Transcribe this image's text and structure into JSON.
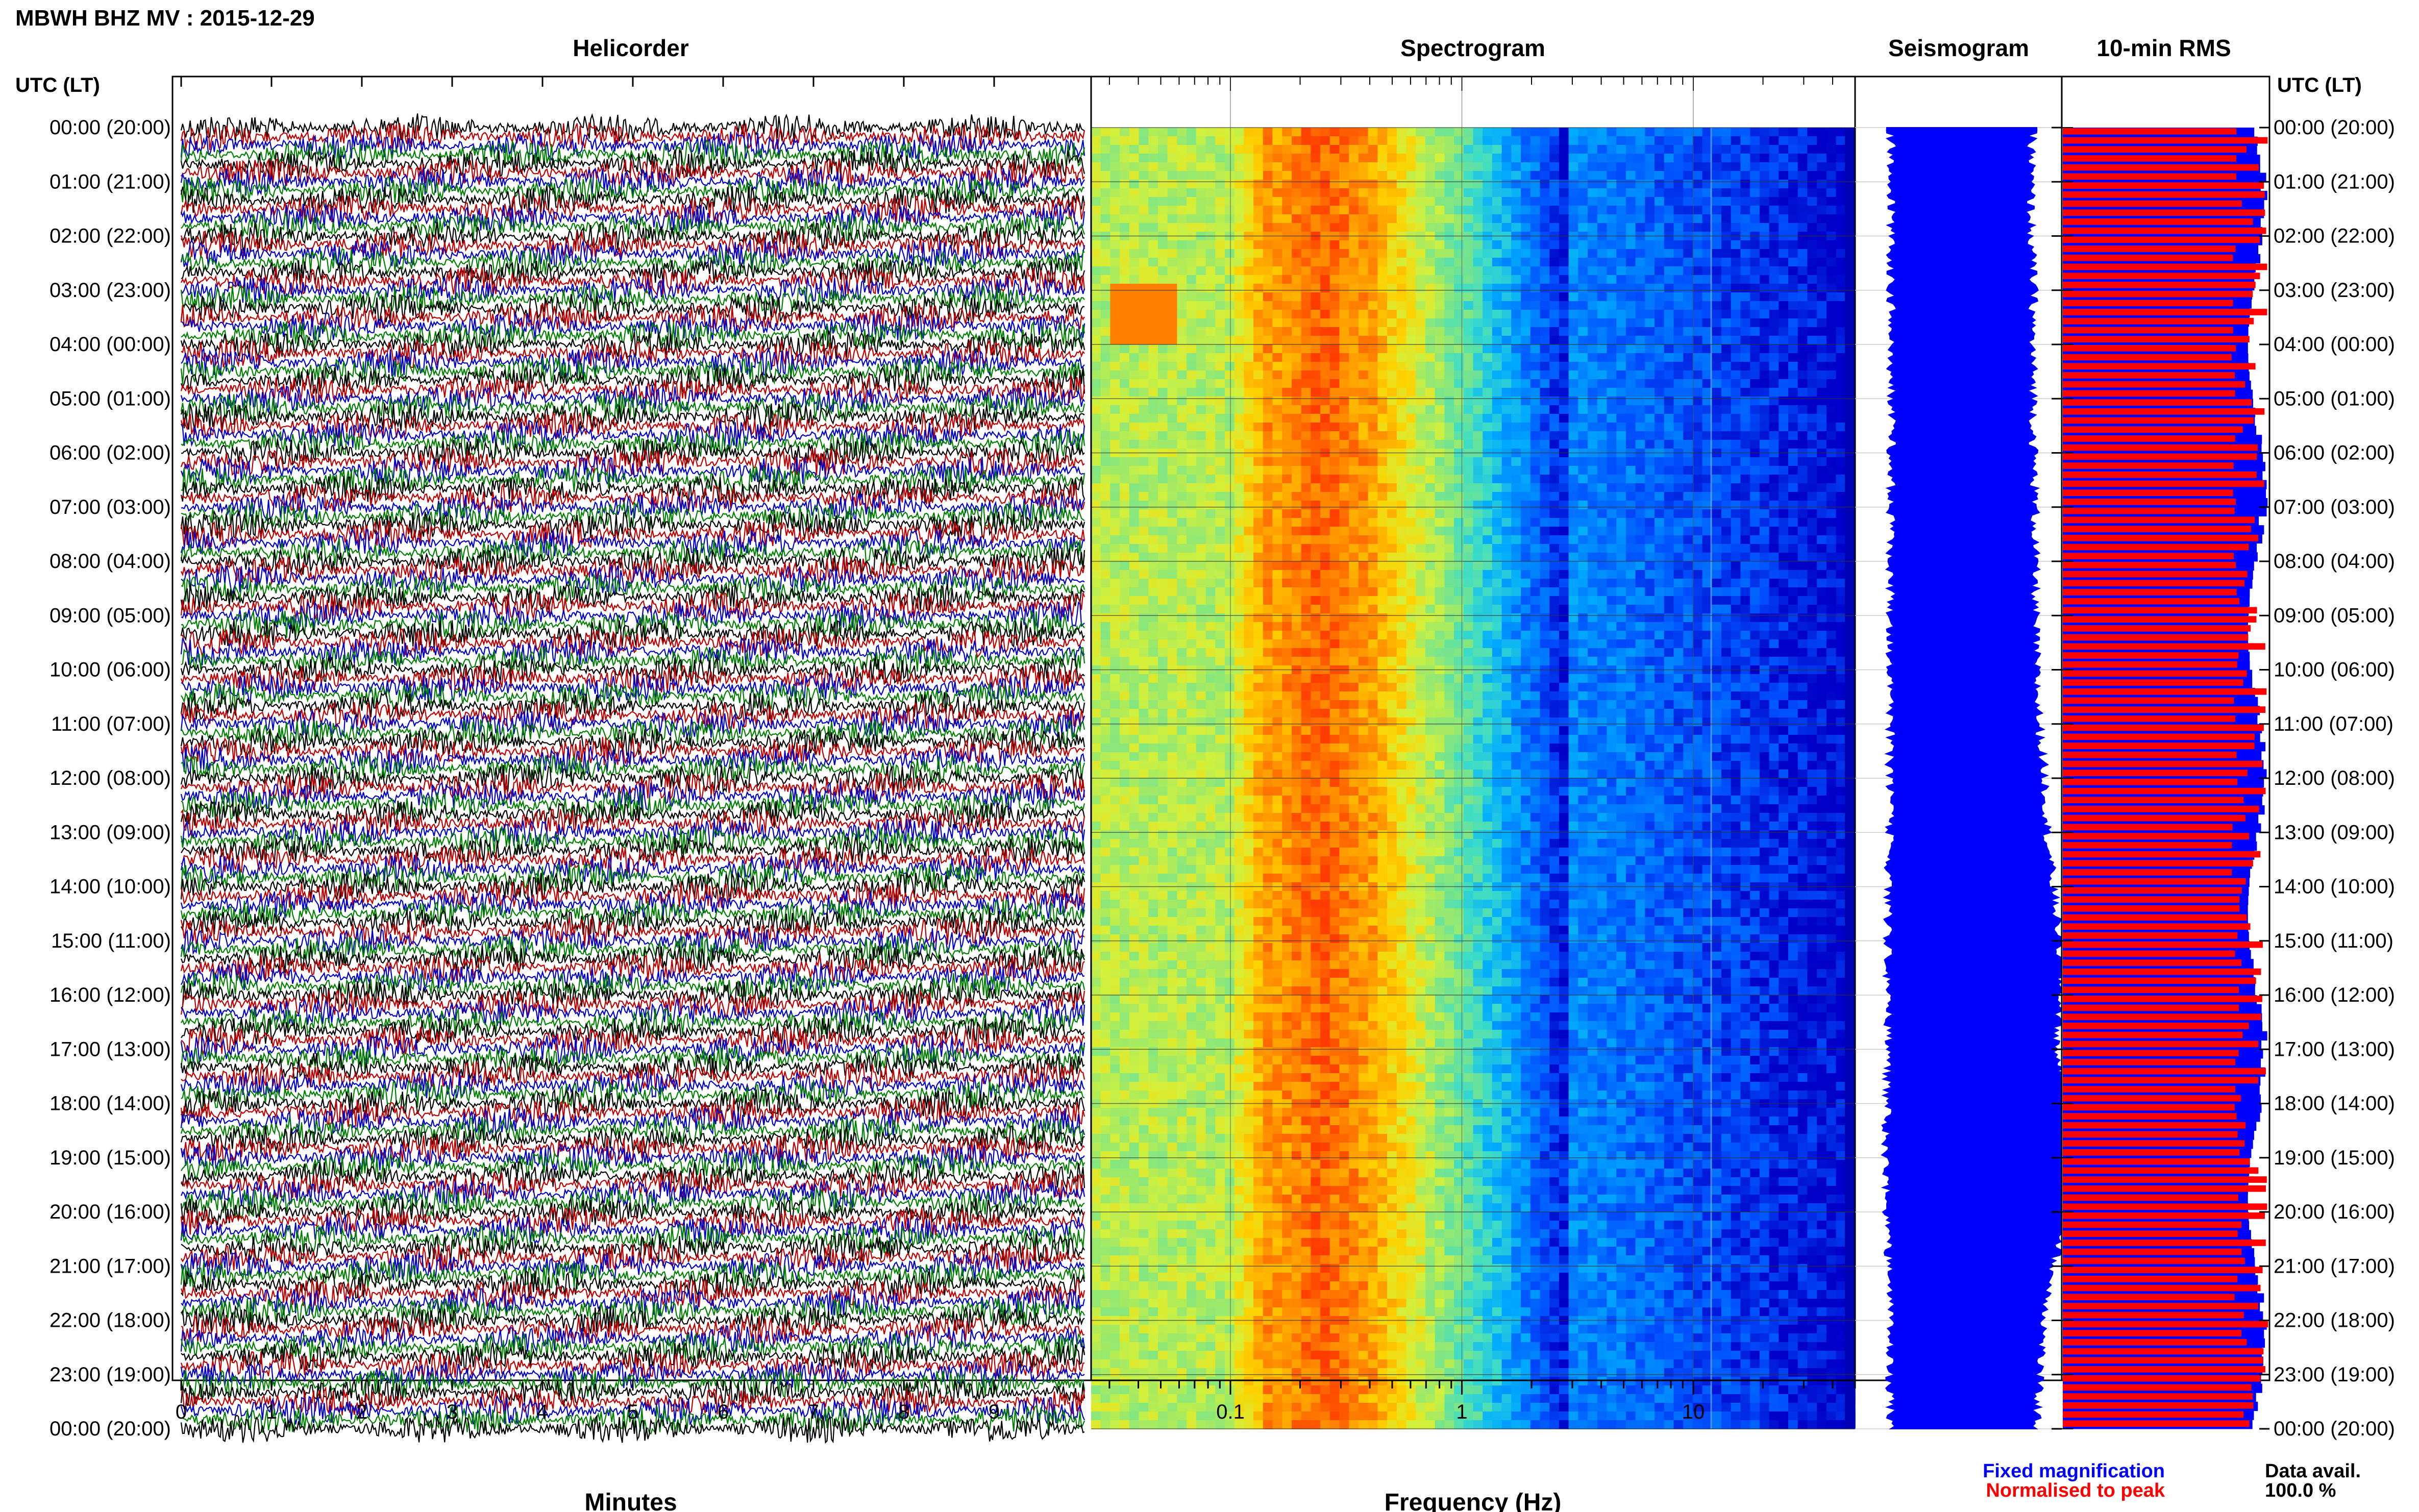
{
  "page_title": "MBWH BHZ MV : 2015-12-29",
  "left_axis_label": "UTC (LT)",
  "right_axis_label": "UTC (LT)",
  "time_labels": [
    "00:00 (20:00)",
    "01:00 (21:00)",
    "02:00 (22:00)",
    "03:00 (23:00)",
    "04:00 (00:00)",
    "05:00 (01:00)",
    "06:00 (02:00)",
    "07:00 (03:00)",
    "08:00 (04:00)",
    "09:00 (05:00)",
    "10:00 (06:00)",
    "11:00 (07:00)",
    "12:00 (08:00)",
    "13:00 (09:00)",
    "14:00 (10:00)",
    "15:00 (11:00)",
    "16:00 (12:00)",
    "17:00 (13:00)",
    "18:00 (14:00)",
    "19:00 (15:00)",
    "20:00 (16:00)",
    "21:00 (17:00)",
    "22:00 (18:00)",
    "23:00 (19:00)",
    "00:00 (20:00)"
  ],
  "panels": {
    "helicorder": {
      "title": "Helicorder",
      "xlabel": "Minutes",
      "xticks": [
        "0",
        "1",
        "2",
        "3",
        "4",
        "5",
        "6",
        "7",
        "8",
        "9"
      ],
      "xlim": [
        0,
        10
      ],
      "trace_colors": [
        "#000000",
        "#c00000",
        "#0000cc",
        "#008000"
      ]
    },
    "spectrogram": {
      "title": "Spectrogram",
      "xlabel": "Frequency (Hz)",
      "xticks": [
        "0.1",
        "1",
        "10"
      ],
      "xscale": "log",
      "xlim": [
        0.025,
        50
      ],
      "peak_band_hz": [
        0.15,
        0.45
      ],
      "colormap": [
        "#7ee0a0",
        "#d8f03c",
        "#ffd000",
        "#ff8a00",
        "#ff4500"
      ]
    },
    "seismogram": {
      "title": "Seismogram",
      "color": "#0000ff"
    },
    "rms": {
      "title": "10-min RMS",
      "fixed_color": "#0000ff",
      "normalised_color": "#ff0000"
    }
  },
  "legend": {
    "fixed": "Fixed magnification",
    "normalised": "Normalised to peak",
    "fixed_color": "#0000ff",
    "normalised_color": "#ff0000"
  },
  "data_avail": {
    "label": "Data avail.",
    "value": "100.0 %"
  },
  "chart_data": [
    {
      "type": "line",
      "title": "Helicorder",
      "xlabel": "Minutes",
      "xlim": [
        0,
        10
      ],
      "rows": 145,
      "grid": true
    },
    {
      "type": "heatmap",
      "title": "Spectrogram",
      "xlabel": "Frequency (Hz)",
      "xscale": "log",
      "xlim": [
        0.025,
        50
      ],
      "grid": true
    },
    {
      "type": "area",
      "title": "Seismogram",
      "envelope_hourly": [
        0.45,
        0.44,
        0.44,
        0.46,
        0.45,
        0.46,
        0.46,
        0.47,
        0.47,
        0.47,
        0.48,
        0.5,
        0.54,
        0.56,
        0.6,
        0.65,
        0.66,
        0.62,
        0.74,
        0.84,
        0.72,
        0.6,
        0.54,
        0.5,
        0.48
      ]
    },
    {
      "type": "bar",
      "title": "10-min RMS",
      "series": [
        {
          "name": "Fixed magnification",
          "value_range": [
            0.9,
            1.0
          ]
        },
        {
          "name": "Normalised to peak",
          "value_range": [
            0.82,
            1.0
          ]
        }
      ]
    }
  ]
}
